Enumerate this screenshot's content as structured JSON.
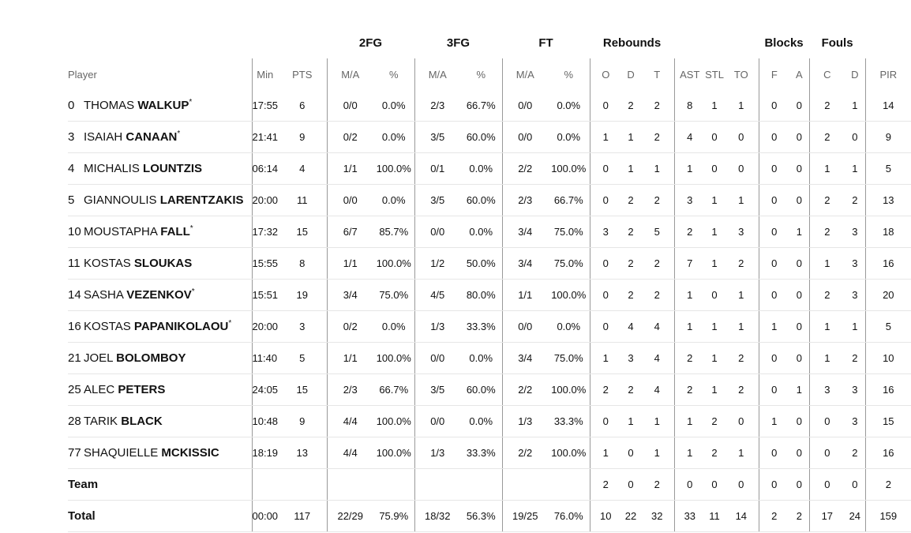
{
  "headers": {
    "groups": {
      "fg2": "2FG",
      "fg3": "3FG",
      "ft": "FT",
      "rebounds": "Rebounds",
      "blocks": "Blocks",
      "fouls": "Fouls"
    },
    "columns": {
      "player": "Player",
      "min": "Min",
      "pts": "PTS",
      "fg2_ma": "M/A",
      "fg2_pct": "%",
      "fg3_ma": "M/A",
      "fg3_pct": "%",
      "ft_ma": "M/A",
      "ft_pct": "%",
      "reb_o": "O",
      "reb_d": "D",
      "reb_t": "T",
      "ast": "AST",
      "stl": "STL",
      "to": "TO",
      "blk_f": "F",
      "blk_a": "A",
      "foul_c": "C",
      "foul_d": "D",
      "pir": "PIR"
    }
  },
  "players": [
    {
      "num": "0",
      "first": "THOMAS",
      "last": "WALKUP",
      "starter": "*",
      "min": "17:55",
      "pts": "6",
      "fg2_ma": "0/0",
      "fg2_pct": "0.0%",
      "fg3_ma": "2/3",
      "fg3_pct": "66.7%",
      "ft_ma": "0/0",
      "ft_pct": "0.0%",
      "o": "0",
      "d": "2",
      "t": "2",
      "ast": "8",
      "stl": "1",
      "to": "1",
      "bf": "0",
      "ba": "0",
      "fc": "2",
      "fd": "1",
      "pir": "14"
    },
    {
      "num": "3",
      "first": "ISAIAH",
      "last": "CANAAN",
      "starter": "*",
      "min": "21:41",
      "pts": "9",
      "fg2_ma": "0/2",
      "fg2_pct": "0.0%",
      "fg3_ma": "3/5",
      "fg3_pct": "60.0%",
      "ft_ma": "0/0",
      "ft_pct": "0.0%",
      "o": "1",
      "d": "1",
      "t": "2",
      "ast": "4",
      "stl": "0",
      "to": "0",
      "bf": "0",
      "ba": "0",
      "fc": "2",
      "fd": "0",
      "pir": "9"
    },
    {
      "num": "4",
      "first": "MICHALIS",
      "last": "LOUNTZIS",
      "starter": "",
      "min": "06:14",
      "pts": "4",
      "fg2_ma": "1/1",
      "fg2_pct": "100.0%",
      "fg3_ma": "0/1",
      "fg3_pct": "0.0%",
      "ft_ma": "2/2",
      "ft_pct": "100.0%",
      "o": "0",
      "d": "1",
      "t": "1",
      "ast": "1",
      "stl": "0",
      "to": "0",
      "bf": "0",
      "ba": "0",
      "fc": "1",
      "fd": "1",
      "pir": "5"
    },
    {
      "num": "5",
      "first": "GIANNOULIS",
      "last": "LARENTZAKIS",
      "starter": "",
      "min": "20:00",
      "pts": "11",
      "fg2_ma": "0/0",
      "fg2_pct": "0.0%",
      "fg3_ma": "3/5",
      "fg3_pct": "60.0%",
      "ft_ma": "2/3",
      "ft_pct": "66.7%",
      "o": "0",
      "d": "2",
      "t": "2",
      "ast": "3",
      "stl": "1",
      "to": "1",
      "bf": "0",
      "ba": "0",
      "fc": "2",
      "fd": "2",
      "pir": "13"
    },
    {
      "num": "10",
      "first": "MOUSTAPHA",
      "last": "FALL",
      "starter": "*",
      "min": "17:32",
      "pts": "15",
      "fg2_ma": "6/7",
      "fg2_pct": "85.7%",
      "fg3_ma": "0/0",
      "fg3_pct": "0.0%",
      "ft_ma": "3/4",
      "ft_pct": "75.0%",
      "o": "3",
      "d": "2",
      "t": "5",
      "ast": "2",
      "stl": "1",
      "to": "3",
      "bf": "0",
      "ba": "1",
      "fc": "2",
      "fd": "3",
      "pir": "18"
    },
    {
      "num": "11",
      "first": "KOSTAS",
      "last": "SLOUKAS",
      "starter": "",
      "min": "15:55",
      "pts": "8",
      "fg2_ma": "1/1",
      "fg2_pct": "100.0%",
      "fg3_ma": "1/2",
      "fg3_pct": "50.0%",
      "ft_ma": "3/4",
      "ft_pct": "75.0%",
      "o": "0",
      "d": "2",
      "t": "2",
      "ast": "7",
      "stl": "1",
      "to": "2",
      "bf": "0",
      "ba": "0",
      "fc": "1",
      "fd": "3",
      "pir": "16"
    },
    {
      "num": "14",
      "first": "SASHA",
      "last": "VEZENKOV",
      "starter": "*",
      "min": "15:51",
      "pts": "19",
      "fg2_ma": "3/4",
      "fg2_pct": "75.0%",
      "fg3_ma": "4/5",
      "fg3_pct": "80.0%",
      "ft_ma": "1/1",
      "ft_pct": "100.0%",
      "o": "0",
      "d": "2",
      "t": "2",
      "ast": "1",
      "stl": "0",
      "to": "1",
      "bf": "0",
      "ba": "0",
      "fc": "2",
      "fd": "3",
      "pir": "20"
    },
    {
      "num": "16",
      "first": "KOSTAS",
      "last": "PAPANIKOLAOU",
      "starter": "*",
      "min": "20:00",
      "pts": "3",
      "fg2_ma": "0/2",
      "fg2_pct": "0.0%",
      "fg3_ma": "1/3",
      "fg3_pct": "33.3%",
      "ft_ma": "0/0",
      "ft_pct": "0.0%",
      "o": "0",
      "d": "4",
      "t": "4",
      "ast": "1",
      "stl": "1",
      "to": "1",
      "bf": "1",
      "ba": "0",
      "fc": "1",
      "fd": "1",
      "pir": "5"
    },
    {
      "num": "21",
      "first": "JOEL",
      "last": "BOLOMBOY",
      "starter": "",
      "min": "11:40",
      "pts": "5",
      "fg2_ma": "1/1",
      "fg2_pct": "100.0%",
      "fg3_ma": "0/0",
      "fg3_pct": "0.0%",
      "ft_ma": "3/4",
      "ft_pct": "75.0%",
      "o": "1",
      "d": "3",
      "t": "4",
      "ast": "2",
      "stl": "1",
      "to": "2",
      "bf": "0",
      "ba": "0",
      "fc": "1",
      "fd": "2",
      "pir": "10"
    },
    {
      "num": "25",
      "first": "ALEC",
      "last": "PETERS",
      "starter": "",
      "min": "24:05",
      "pts": "15",
      "fg2_ma": "2/3",
      "fg2_pct": "66.7%",
      "fg3_ma": "3/5",
      "fg3_pct": "60.0%",
      "ft_ma": "2/2",
      "ft_pct": "100.0%",
      "o": "2",
      "d": "2",
      "t": "4",
      "ast": "2",
      "stl": "1",
      "to": "2",
      "bf": "0",
      "ba": "1",
      "fc": "3",
      "fd": "3",
      "pir": "16"
    },
    {
      "num": "28",
      "first": "TARIK",
      "last": "BLACK",
      "starter": "",
      "min": "10:48",
      "pts": "9",
      "fg2_ma": "4/4",
      "fg2_pct": "100.0%",
      "fg3_ma": "0/0",
      "fg3_pct": "0.0%",
      "ft_ma": "1/3",
      "ft_pct": "33.3%",
      "o": "0",
      "d": "1",
      "t": "1",
      "ast": "1",
      "stl": "2",
      "to": "0",
      "bf": "1",
      "ba": "0",
      "fc": "0",
      "fd": "3",
      "pir": "15"
    },
    {
      "num": "77",
      "first": "SHAQUIELLE",
      "last": "MCKISSIC",
      "starter": "",
      "min": "18:19",
      "pts": "13",
      "fg2_ma": "4/4",
      "fg2_pct": "100.0%",
      "fg3_ma": "1/3",
      "fg3_pct": "33.3%",
      "ft_ma": "2/2",
      "ft_pct": "100.0%",
      "o": "1",
      "d": "0",
      "t": "1",
      "ast": "1",
      "stl": "2",
      "to": "1",
      "bf": "0",
      "ba": "0",
      "fc": "0",
      "fd": "2",
      "pir": "16"
    }
  ],
  "team": {
    "label": "Team",
    "min": "",
    "pts": "",
    "fg2_ma": "",
    "fg2_pct": "",
    "fg3_ma": "",
    "fg3_pct": "",
    "ft_ma": "",
    "ft_pct": "",
    "o": "2",
    "d": "0",
    "t": "2",
    "ast": "0",
    "stl": "0",
    "to": "0",
    "bf": "0",
    "ba": "0",
    "fc": "0",
    "fd": "0",
    "pir": "2"
  },
  "total": {
    "label": "Total",
    "min": "00:00",
    "pts": "117",
    "fg2_ma": "22/29",
    "fg2_pct": "75.9%",
    "fg3_ma": "18/32",
    "fg3_pct": "56.3%",
    "ft_ma": "19/25",
    "ft_pct": "76.0%",
    "o": "10",
    "d": "22",
    "t": "32",
    "ast": "33",
    "stl": "11",
    "to": "14",
    "bf": "2",
    "ba": "2",
    "fc": "17",
    "fd": "24",
    "pir": "159"
  }
}
